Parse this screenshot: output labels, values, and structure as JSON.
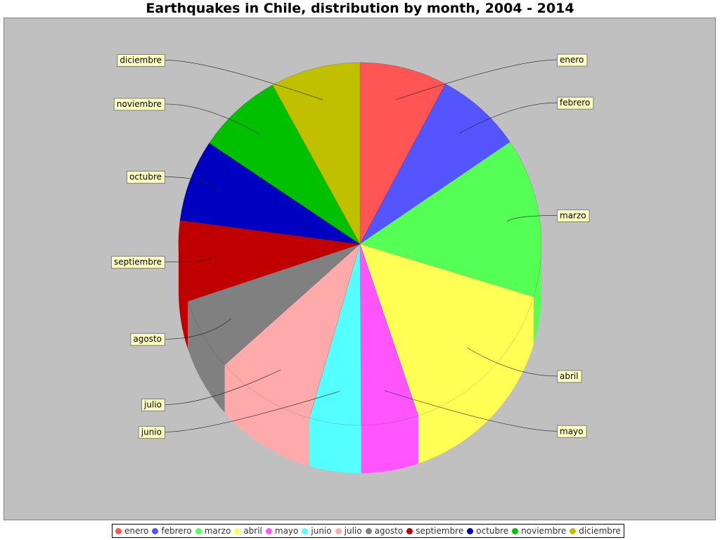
{
  "chart_data": {
    "type": "pie",
    "title": "Earthquakes in Chile, distribution by month, 2004 - 2014",
    "legend": "bottom",
    "slices": [
      {
        "label": "enero",
        "value": 7.8,
        "color": "#ff5555"
      },
      {
        "label": "febrero",
        "value": 7.7,
        "color": "#5555ff"
      },
      {
        "label": "marzo",
        "value": 14.2,
        "color": "#55ff55"
      },
      {
        "label": "abril",
        "value": 15.1,
        "color": "#ffff55"
      },
      {
        "label": "mayo",
        "value": 5.1,
        "color": "#ff55ff"
      },
      {
        "label": "junio",
        "value": 4.6,
        "color": "#55ffff"
      },
      {
        "label": "julio",
        "value": 8.9,
        "color": "#ffaaaa"
      },
      {
        "label": "agosto",
        "value": 6.5,
        "color": "#808080"
      },
      {
        "label": "septiembre",
        "value": 7.2,
        "color": "#c00000"
      },
      {
        "label": "octubre",
        "value": 7.3,
        "color": "#0000c0"
      },
      {
        "label": "noviembre",
        "value": 7.6,
        "color": "#00c000"
      },
      {
        "label": "diciembre",
        "value": 8.0,
        "color": "#c0c000"
      }
    ]
  }
}
